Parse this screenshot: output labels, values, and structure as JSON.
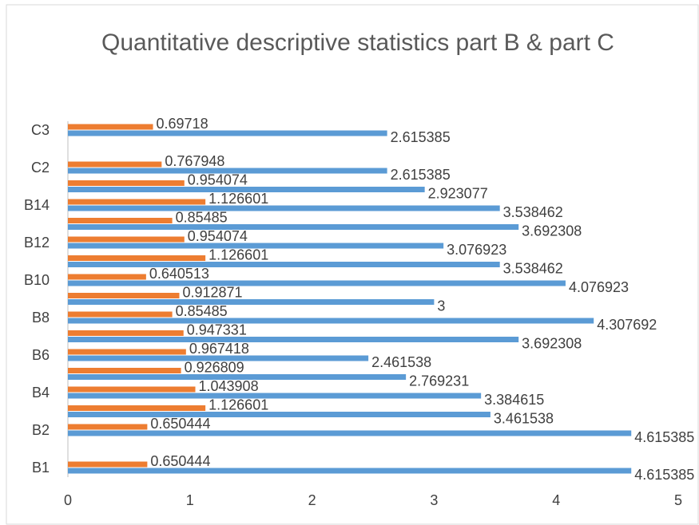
{
  "chart_data": {
    "type": "hbar",
    "title": "Quantitative descriptive statistics part B & part C",
    "categories": [
      "B1",
      null,
      "B2",
      null,
      "B4",
      null,
      "B6",
      null,
      "B8",
      null,
      "B10",
      null,
      "B12",
      null,
      "B14",
      null,
      "C2",
      null,
      "C3"
    ],
    "series": [
      {
        "color": "#5b9bd5",
        "values": [
          4.615385,
          null,
          4.615385,
          3.461538,
          3.384615,
          2.769231,
          2.461538,
          3.692308,
          4.307692,
          3,
          4.076923,
          3.538462,
          3.076923,
          3.692308,
          3.538462,
          2.923077,
          2.615385,
          null,
          2.615385
        ]
      },
      {
        "color": "#ed7d31",
        "values": [
          0.650444,
          null,
          0.650444,
          1.126601,
          1.043908,
          0.926809,
          0.967418,
          0.947331,
          0.85485,
          0.912871,
          0.640513,
          1.126601,
          0.954074,
          0.85485,
          1.126601,
          0.954074,
          0.767948,
          null,
          0.69718
        ]
      }
    ],
    "xlim": [
      0,
      5
    ],
    "xticks": [
      0,
      1,
      2,
      3,
      4,
      5
    ]
  }
}
